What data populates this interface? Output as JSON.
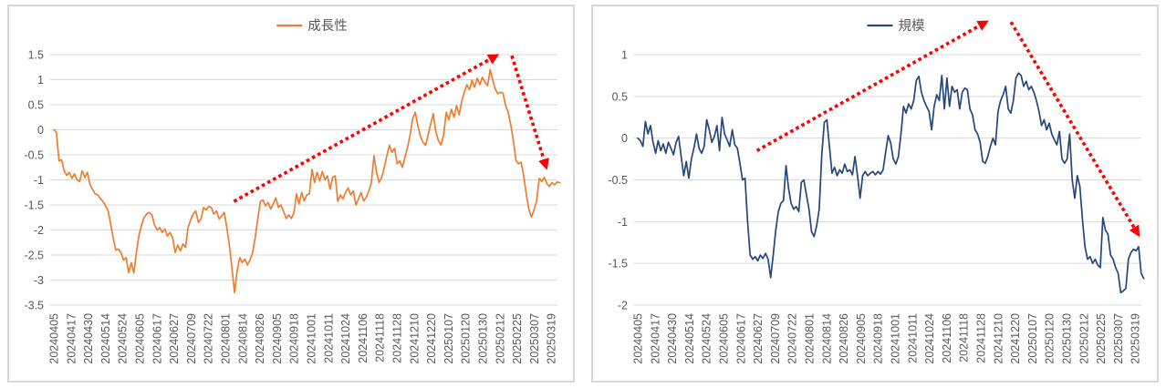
{
  "page": {
    "background": "#ffffff"
  },
  "style_colors": {
    "gridline": "#d9d9d9",
    "axis_text": "#595959",
    "legend_text": "#595959",
    "panel_border": "#d9d9d9",
    "panel_background": "#ffffff"
  },
  "chart_data": [
    {
      "type": "line",
      "name": "growth-factor-daily-line",
      "legend_label": "成長性",
      "legend_position": "top-center",
      "line_color": "#ED7D31",
      "trend_arrow_color": "#FF0000",
      "grid": true,
      "ylim": [
        -3.5,
        1.5
      ],
      "y_ticks": [
        1.5,
        1,
        0.5,
        0,
        -0.5,
        -1,
        -1.5,
        -2,
        -2.5,
        -3,
        -3.5
      ],
      "x_tick_labels": [
        "20240405",
        "20240417",
        "20240430",
        "20240514",
        "20240524",
        "20240605",
        "20240617",
        "20240627",
        "20240709",
        "20240722",
        "20240801",
        "20240814",
        "20240826",
        "20240905",
        "20240918",
        "20241001",
        "20241011",
        "20241024",
        "20241106",
        "20241118",
        "20241128",
        "20241210",
        "20241220",
        "20250107",
        "20250120",
        "20250130",
        "20250212",
        "20250225",
        "20250307",
        "20250319"
      ],
      "x_end_tick": 29.5,
      "values": [
        0.0,
        -0.05,
        -0.62,
        -0.6,
        -0.82,
        -0.91,
        -0.85,
        -0.97,
        -0.88,
        -1.0,
        -1.03,
        -0.82,
        -0.95,
        -0.85,
        -1.09,
        -1.19,
        -1.28,
        -1.3,
        -1.37,
        -1.43,
        -1.52,
        -1.61,
        -1.88,
        -2.16,
        -2.4,
        -2.38,
        -2.45,
        -2.6,
        -2.55,
        -2.85,
        -2.65,
        -2.86,
        -2.45,
        -2.1,
        -1.9,
        -1.75,
        -1.68,
        -1.65,
        -1.7,
        -1.9,
        -2.0,
        -1.95,
        -2.05,
        -1.98,
        -2.12,
        -2.05,
        -2.15,
        -2.45,
        -2.3,
        -2.42,
        -2.28,
        -2.35,
        -1.95,
        -1.8,
        -1.68,
        -1.62,
        -1.85,
        -1.78,
        -1.55,
        -1.6,
        -1.53,
        -1.55,
        -1.68,
        -1.62,
        -1.78,
        -1.72,
        -1.65,
        -1.95,
        -2.3,
        -2.75,
        -3.25,
        -2.82,
        -2.55,
        -2.65,
        -2.58,
        -2.7,
        -2.6,
        -2.45,
        -2.15,
        -1.78,
        -1.43,
        -1.4,
        -1.52,
        -1.45,
        -1.58,
        -1.48,
        -1.36,
        -1.55,
        -1.5,
        -1.63,
        -1.77,
        -1.7,
        -1.77,
        -1.65,
        -1.28,
        -1.48,
        -1.25,
        -1.42,
        -1.3,
        -1.28,
        -0.79,
        -1.05,
        -0.85,
        -1.02,
        -0.83,
        -1.0,
        -0.92,
        -1.19,
        -0.95,
        -0.92,
        -1.43,
        -1.3,
        -1.38,
        -1.25,
        -1.16,
        -1.3,
        -1.22,
        -1.5,
        -1.38,
        -1.25,
        -1.42,
        -1.35,
        -1.22,
        -1.06,
        -0.52,
        -0.85,
        -1.05,
        -0.95,
        -0.75,
        -0.52,
        -0.31,
        -0.45,
        -0.37,
        -0.68,
        -0.62,
        -0.75,
        -0.55,
        -0.35,
        -0.1,
        0.22,
        0.35,
        0.08,
        -0.13,
        -0.25,
        -0.31,
        -0.1,
        0.12,
        0.32,
        -0.05,
        -0.22,
        -0.3,
        -0.1,
        0.35,
        0.2,
        0.41,
        0.25,
        0.48,
        0.3,
        0.57,
        0.75,
        0.9,
        0.8,
        0.99,
        0.85,
        1.03,
        0.9,
        1.05,
        0.95,
        0.88,
        1.2,
        1.0,
        0.81,
        0.72,
        0.75,
        0.73,
        0.48,
        0.35,
        0.1,
        -0.22,
        -0.61,
        -0.68,
        -0.65,
        -0.92,
        -1.28,
        -1.59,
        -1.74,
        -1.6,
        -1.43,
        -0.97,
        -1.03,
        -0.95,
        -1.08,
        -1.13,
        -1.05,
        -1.1,
        -1.04,
        -1.06
      ],
      "arrows": [
        {
          "from": [
            10.5,
            -1.43
          ],
          "to": [
            25.8,
            1.48
          ]
        },
        {
          "from": [
            26.7,
            1.48
          ],
          "to": [
            28.7,
            -0.74
          ]
        }
      ]
    },
    {
      "type": "line",
      "name": "size-factor-daily-line",
      "legend_label": "規模",
      "legend_position": "top-center",
      "line_color": "#26477B",
      "trend_arrow_color": "#FF0000",
      "grid": true,
      "ylim": [
        -2,
        1
      ],
      "y_ticks": [
        1,
        0.5,
        0,
        -0.5,
        -1,
        -1.5,
        -2
      ],
      "x_tick_labels": [
        "20240405",
        "20240417",
        "20240430",
        "20240514",
        "20240524",
        "20240605",
        "20240617",
        "20240627",
        "20240709",
        "20240722",
        "20240801",
        "20240814",
        "20240826",
        "20240905",
        "20240918",
        "20241001",
        "20241011",
        "20241024",
        "20241106",
        "20241118",
        "20241128",
        "20241210",
        "20241220",
        "20250107",
        "20250120",
        "20250130",
        "20250212",
        "20250225",
        "20250307",
        "20250319"
      ],
      "x_end_tick": 29.5,
      "values": [
        0.0,
        -0.03,
        -0.1,
        0.2,
        0.05,
        0.15,
        -0.05,
        -0.18,
        -0.03,
        -0.15,
        -0.07,
        -0.18,
        -0.05,
        -0.12,
        -0.2,
        -0.05,
        0.02,
        -0.22,
        -0.45,
        -0.28,
        -0.48,
        -0.25,
        -0.12,
        0.05,
        -0.12,
        -0.18,
        -0.1,
        0.22,
        0.1,
        -0.05,
        0.02,
        0.15,
        -0.15,
        0.25,
        0.05,
        -0.02,
        -0.1,
        0.1,
        -0.08,
        -0.12,
        -0.3,
        -0.5,
        -0.48,
        -1.0,
        -1.4,
        -1.45,
        -1.42,
        -1.47,
        -1.4,
        -1.44,
        -1.38,
        -1.45,
        -1.67,
        -1.4,
        -1.1,
        -0.88,
        -0.78,
        -0.75,
        -0.33,
        -0.6,
        -0.78,
        -0.85,
        -0.82,
        -0.88,
        -0.53,
        -0.5,
        -0.68,
        -0.85,
        -1.12,
        -1.18,
        -1.05,
        -0.85,
        -0.2,
        0.19,
        0.22,
        -0.1,
        -0.42,
        -0.35,
        -0.45,
        -0.38,
        -0.42,
        -0.31,
        -0.4,
        -0.38,
        -0.44,
        -0.22,
        -0.45,
        -0.72,
        -0.45,
        -0.4,
        -0.45,
        -0.42,
        -0.4,
        -0.44,
        -0.4,
        -0.43,
        -0.38,
        -0.17,
        0.03,
        -0.06,
        -0.25,
        -0.31,
        -0.22,
        0.05,
        0.38,
        0.3,
        0.41,
        0.35,
        0.45,
        0.69,
        0.74,
        0.55,
        0.45,
        0.38,
        0.32,
        0.1,
        0.38,
        0.52,
        0.45,
        0.75,
        0.35,
        0.72,
        0.38,
        0.62,
        0.55,
        0.58,
        0.35,
        0.55,
        0.6,
        0.58,
        0.35,
        0.28,
        0.1,
        0.05,
        -0.05,
        -0.28,
        -0.3,
        -0.22,
        -0.1,
        0.0,
        -0.08,
        0.32,
        0.45,
        0.52,
        0.62,
        0.35,
        0.3,
        0.45,
        0.72,
        0.78,
        0.75,
        0.62,
        0.68,
        0.58,
        0.62,
        0.55,
        0.45,
        0.32,
        0.15,
        0.22,
        0.1,
        0.18,
        0.05,
        -0.02,
        -0.08,
        0.08,
        -0.25,
        -0.3,
        -0.25,
        0.05,
        -0.5,
        -0.72,
        -0.45,
        -0.58,
        -0.97,
        -1.3,
        -1.45,
        -1.42,
        -1.5,
        -1.45,
        -1.52,
        -1.55,
        -0.95,
        -1.1,
        -1.15,
        -1.4,
        -1.45,
        -1.55,
        -1.62,
        -1.85,
        -1.83,
        -1.8,
        -1.45,
        -1.37,
        -1.33,
        -1.35,
        -1.3,
        -1.62,
        -1.68
      ],
      "arrows": [
        {
          "from": [
            6.95,
            -0.15
          ],
          "to": [
            20.3,
            1.39
          ]
        },
        {
          "from": [
            21.76,
            1.39
          ],
          "to": [
            29.17,
            -1.15
          ]
        }
      ]
    }
  ]
}
